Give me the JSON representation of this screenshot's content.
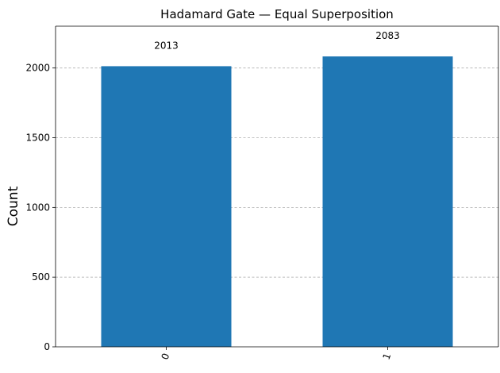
{
  "chart_data": {
    "type": "bar",
    "title": "Hadamard Gate — Equal Superposition",
    "xlabel": "",
    "ylabel": "Count",
    "categories": [
      "0",
      "1"
    ],
    "values": [
      2013,
      2083
    ],
    "data_labels": [
      "2013",
      "2083"
    ],
    "y_ticks": [
      0,
      500,
      1000,
      1500,
      2000
    ],
    "y_tick_labels": [
      "0",
      "500",
      "1000",
      "1500",
      "2000"
    ],
    "ylim": [
      0,
      2300
    ],
    "grid": "y, dashed",
    "bar_color": "#1f77b4",
    "grid_color": "#b0b0b0",
    "x_tick_rotation": "70°"
  }
}
